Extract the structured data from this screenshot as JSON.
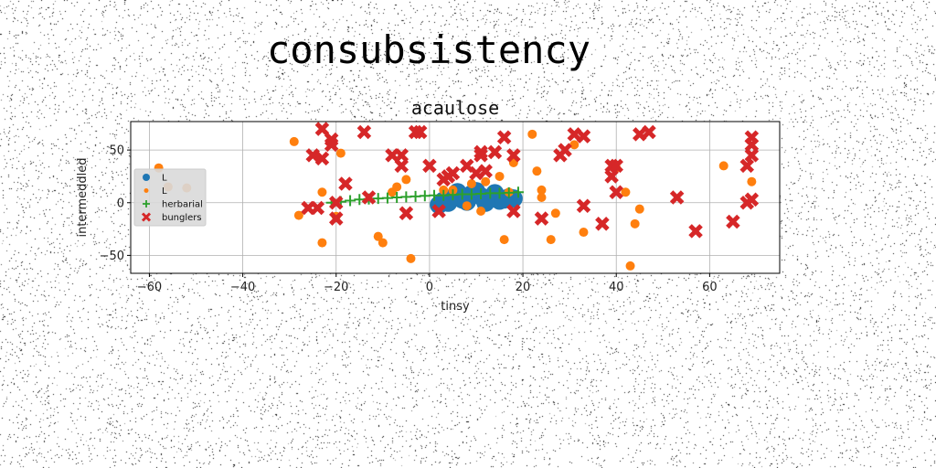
{
  "figure": {
    "suptitle": "consubsistency"
  },
  "colors": {
    "series1": "#1f77b4",
    "series2": "#ff7f0e",
    "series3": "#2ca02c",
    "series4": "#d62728",
    "grid": "#b0b0b0",
    "legend_bg": "#d9d9d9"
  },
  "chart_data": {
    "type": "scatter",
    "title": "acaulose",
    "xlabel": "tinsy",
    "ylabel": "intermeddled",
    "xlim": [
      -64,
      75
    ],
    "ylim": [
      -67,
      77
    ],
    "xticks": [
      -60,
      -40,
      -20,
      0,
      20,
      40,
      60
    ],
    "yticks": [
      -50,
      0,
      50
    ],
    "grid": true,
    "legend_position": "center-left",
    "series": [
      {
        "name": "L",
        "marker": "circle-large",
        "x": [
          3,
          5,
          7,
          9,
          11,
          13,
          15,
          17,
          6,
          10,
          14,
          4,
          8,
          12,
          16,
          2,
          18
        ],
        "y": [
          2,
          5,
          3,
          8,
          6,
          4,
          2,
          5,
          10,
          11,
          9,
          0,
          1,
          0,
          3,
          -2,
          4
        ]
      },
      {
        "name": "L",
        "marker": "circle",
        "x": [
          -58,
          -52,
          -56,
          -29,
          -28,
          -23,
          -23,
          -20,
          -19,
          -11,
          -10,
          -8,
          -7,
          -5,
          -4,
          3,
          5,
          8,
          9,
          11,
          12,
          15,
          16,
          17,
          18,
          22,
          23,
          24,
          24,
          26,
          27,
          31,
          33,
          40,
          42,
          43,
          44,
          45,
          63,
          69
        ],
        "y": [
          33,
          14,
          15,
          58,
          -12,
          10,
          -38,
          -13,
          47,
          -32,
          -38,
          10,
          15,
          22,
          -53,
          12,
          12,
          -3,
          18,
          -8,
          20,
          25,
          -35,
          10,
          38,
          65,
          30,
          12,
          5,
          -35,
          -10,
          55,
          -28,
          33,
          10,
          -60,
          -20,
          -6,
          35,
          20
        ]
      },
      {
        "name": "herbarial",
        "marker": "plus",
        "x": [
          -21,
          -19,
          -17,
          -15,
          -13,
          -11,
          -9,
          -7,
          -5,
          -3,
          -1,
          1,
          3,
          5,
          7,
          9,
          11,
          13,
          15,
          17,
          19
        ],
        "y": [
          0,
          1,
          2,
          3,
          3.5,
          4,
          4.5,
          5,
          5.5,
          6,
          6.5,
          7,
          7,
          7.5,
          8,
          8,
          8.5,
          9,
          9,
          9.5,
          10
        ]
      },
      {
        "name": "bunglers",
        "marker": "x",
        "x": [
          -25,
          -23,
          -23,
          -21,
          -21,
          -20,
          -18,
          -14,
          -13,
          -8,
          -6,
          -6,
          -5,
          -3,
          -2,
          0,
          2,
          3,
          4,
          5,
          8,
          11,
          11,
          12,
          14,
          16,
          18,
          18,
          24,
          28,
          29,
          31,
          33,
          33,
          37,
          39,
          39,
          40,
          40,
          45,
          47,
          53,
          57,
          65,
          68,
          68,
          69,
          69,
          69,
          69,
          -26,
          -24,
          -20,
          10
        ],
        "y": [
          45,
          70,
          42,
          60,
          55,
          -15,
          18,
          67,
          5,
          45,
          35,
          45,
          -10,
          67,
          67,
          35,
          -8,
          22,
          25,
          28,
          35,
          48,
          45,
          30,
          48,
          62,
          45,
          -8,
          -15,
          45,
          50,
          65,
          63,
          -3,
          -20,
          25,
          35,
          10,
          35,
          65,
          67,
          5,
          -27,
          -18,
          0,
          35,
          45,
          55,
          62,
          3,
          -5,
          -5,
          0,
          28
        ]
      }
    ]
  }
}
